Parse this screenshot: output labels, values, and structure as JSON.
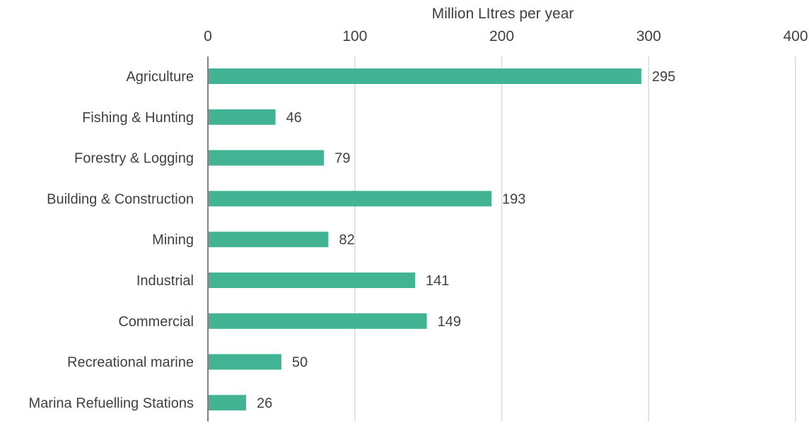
{
  "chart_data": {
    "type": "bar",
    "orientation": "horizontal",
    "title": "",
    "xlabel": "Million LItres per year",
    "ylabel": "",
    "xlim": [
      0,
      400
    ],
    "x_ticks": [
      0,
      100,
      200,
      300,
      400
    ],
    "x_axis_position": "top",
    "grid": true,
    "categories": [
      "Agriculture",
      "Fishing & Hunting",
      "Forestry & Logging",
      "Building & Construction",
      "Mining",
      "Industrial",
      "Commercial",
      "Recreational marine",
      "Marina Refuelling Stations"
    ],
    "values": [
      295,
      46,
      79,
      193,
      82,
      141,
      149,
      50,
      26
    ],
    "data_labels": [
      "295",
      "46",
      "79",
      "193",
      "82",
      "141",
      "149",
      "50",
      "26"
    ],
    "bar_color": "#43b493",
    "grid_color": "#d9d9d9",
    "axis_color": "#595959"
  }
}
